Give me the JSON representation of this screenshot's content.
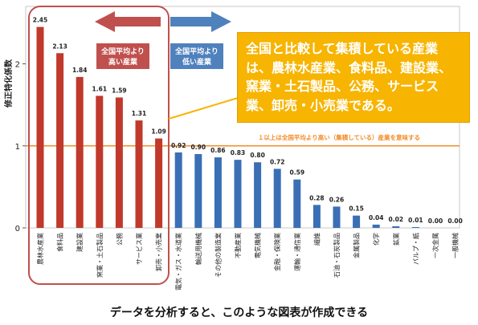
{
  "chart_data": {
    "type": "bar",
    "ylabel": "修正特化係数",
    "ylim": [
      0,
      2.7
    ],
    "yticks": [
      0,
      1,
      2
    ],
    "reference_line": {
      "value": 1,
      "label": "１以上は全国平均より高い（集積している）産業を意味する",
      "color": "#f28c28"
    },
    "categories": [
      "農林水産業",
      "食料品",
      "建設業",
      "窯業・土石製品",
      "公務",
      "サービス業",
      "卸売・小売業",
      "電気・ガス・水道業",
      "輸送用機械",
      "その他の製造業",
      "不動産業",
      "電気機械",
      "金融・保険業",
      "運輸・通信業",
      "繊維",
      "石油・石炭製品",
      "金属製品",
      "化学",
      "鉱業",
      "パルプ・紙",
      "一次金属",
      "一般機械"
    ],
    "values": [
      2.45,
      2.13,
      1.84,
      1.61,
      1.59,
      1.31,
      1.09,
      0.92,
      0.9,
      0.86,
      0.83,
      0.8,
      0.72,
      0.59,
      0.28,
      0.26,
      0.15,
      0.04,
      0.02,
      0.01,
      0.0,
      0.0
    ],
    "value_labels": [
      "2.45",
      "2.13",
      "1.84",
      "1.61",
      "1.59",
      "1.31",
      "1.09",
      "0.92",
      "0.90",
      "0.86",
      "0.83",
      "0.80",
      "0.72",
      "0.59",
      "0.28",
      "0.26",
      "0.15",
      "0.04",
      "0.02",
      "0.01",
      "0.00",
      "0.00"
    ],
    "colors": {
      "high": "#c0392b",
      "low": "#3a6fb5"
    }
  },
  "arrows": {
    "left": {
      "label": "全国平均より\n高い産業",
      "color": "#c0504d"
    },
    "right": {
      "label": "全国平均より\n低い産業",
      "color": "#4f81bd"
    }
  },
  "callout": {
    "text": "全国と比較して集積している産業は、農林水産業、食料品、建設業、窯業・土石製品、公務、サービス業、卸売・小売業である。",
    "color": "#f7b400"
  },
  "footer": "データを分析すると、このような図表が作成できる"
}
